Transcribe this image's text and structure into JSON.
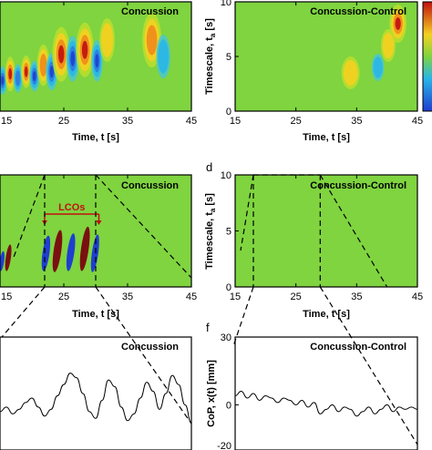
{
  "chart_data": [
    {
      "panel": "",
      "type": "heatmap",
      "title": "Concussion",
      "xlabel": "Time, t [s]",
      "ylabel": "",
      "xticks": [
        "15",
        "25",
        "35",
        "45"
      ],
      "yticks": [],
      "xlim": [
        15,
        45
      ],
      "ylim": [
        0,
        10
      ],
      "blobs": [
        {
          "t": 15.4,
          "s": 2.8,
          "w": 0.7,
          "h": 2.6,
          "v": -0.9
        },
        {
          "t": 16.6,
          "s": 3.4,
          "w": 0.8,
          "h": 3.2,
          "v": 0.85
        },
        {
          "t": 17.8,
          "s": 3.0,
          "w": 0.7,
          "h": 2.6,
          "v": -0.7
        },
        {
          "t": 19.1,
          "s": 3.6,
          "w": 0.8,
          "h": 3.0,
          "v": 0.8
        },
        {
          "t": 20.4,
          "s": 3.2,
          "w": 0.8,
          "h": 2.8,
          "v": -0.85
        },
        {
          "t": 21.8,
          "s": 4.2,
          "w": 1.0,
          "h": 3.8,
          "v": 0.7
        },
        {
          "t": 23.1,
          "s": 3.6,
          "w": 0.9,
          "h": 3.4,
          "v": -0.8
        },
        {
          "t": 24.6,
          "s": 5.2,
          "w": 1.4,
          "h": 5.0,
          "v": 1.0
        },
        {
          "t": 26.4,
          "s": 4.8,
          "w": 1.0,
          "h": 4.2,
          "v": -0.9
        },
        {
          "t": 28.3,
          "s": 5.6,
          "w": 1.4,
          "h": 5.0,
          "v": 1.0
        },
        {
          "t": 30.2,
          "s": 4.6,
          "w": 0.9,
          "h": 3.8,
          "v": -0.85
        },
        {
          "t": 31.8,
          "s": 6.5,
          "w": 1.2,
          "h": 4.0,
          "v": 0.4
        },
        {
          "t": 38.8,
          "s": 6.5,
          "w": 1.5,
          "h": 5.0,
          "v": 0.5
        },
        {
          "t": 40.6,
          "s": 5.0,
          "w": 1.1,
          "h": 4.0,
          "v": -0.4
        }
      ]
    },
    {
      "panel": "",
      "type": "heatmap",
      "title": "Concussion-Control",
      "xlabel": "Time, t [s]",
      "ylabel": "Timescale, t",
      "ylabel_sub": "a",
      "ylabel_unit": " [s]",
      "xticks": [
        "15",
        "25",
        "35",
        "45"
      ],
      "yticks": [
        "0",
        "5",
        "10"
      ],
      "xlim": [
        15,
        45
      ],
      "ylim": [
        0,
        10
      ],
      "blobs": [
        {
          "t": 41.8,
          "s": 8.0,
          "w": 1.4,
          "h": 3.5,
          "v": 0.85
        },
        {
          "t": 40.2,
          "s": 6.0,
          "w": 1.2,
          "h": 3.0,
          "v": 0.3
        },
        {
          "t": 38.5,
          "s": 4.0,
          "w": 1.0,
          "h": 2.5,
          "v": -0.25
        },
        {
          "t": 34.0,
          "s": 3.5,
          "w": 1.5,
          "h": 3.0,
          "v": 0.15
        }
      ]
    },
    {
      "panel": "",
      "type": "heatmap",
      "title": "Concussion",
      "xlabel": "Time, t [s]",
      "ylabel": "",
      "xticks": [
        "15",
        "25",
        "35",
        "45"
      ],
      "yticks": [],
      "xlim": [
        15,
        45
      ],
      "ylim": [
        0,
        10
      ],
      "annotation": "LCOs",
      "lco_span": [
        22.0,
        30.5
      ],
      "blobs": [
        {
          "t": 15.3,
          "s": 2.3,
          "w": 0.35,
          "h": 0.9,
          "v": -1
        },
        {
          "t": 16.3,
          "s": 2.6,
          "w": 0.4,
          "h": 1.2,
          "v": 1
        },
        {
          "t": 22.2,
          "s": 3.0,
          "w": 0.55,
          "h": 1.6,
          "v": -1
        },
        {
          "t": 24.0,
          "s": 3.2,
          "w": 0.6,
          "h": 1.9,
          "v": 1
        },
        {
          "t": 26.1,
          "s": 3.1,
          "w": 0.55,
          "h": 1.7,
          "v": -1
        },
        {
          "t": 28.3,
          "s": 3.4,
          "w": 0.6,
          "h": 2.0,
          "v": 1
        },
        {
          "t": 29.9,
          "s": 3.0,
          "w": 0.5,
          "h": 1.7,
          "v": -1
        }
      ]
    },
    {
      "panel": "d",
      "type": "heatmap",
      "title": "Concussion-Control",
      "xlabel": "Time, t [s]",
      "ylabel": "Timescale, t",
      "ylabel_sub": "a",
      "ylabel_unit": " [s]",
      "xticks": [
        "15",
        "25",
        "35",
        "45"
      ],
      "yticks": [
        "0",
        "5",
        "10"
      ],
      "xlim": [
        15,
        45
      ],
      "ylim": [
        0,
        10
      ],
      "blobs": []
    },
    {
      "panel": "",
      "type": "line",
      "title": "Concussion",
      "xlabel": "",
      "ylabel": "",
      "xlim": [
        15,
        45
      ],
      "ylim": [
        -20,
        30
      ],
      "x": [
        15,
        16,
        17,
        18,
        19,
        20,
        21,
        22,
        23,
        24,
        25,
        26,
        27,
        28,
        29,
        30,
        31,
        32,
        33,
        34,
        35,
        36,
        37,
        38,
        39,
        40,
        41,
        42,
        43,
        44,
        45
      ],
      "y": [
        -3,
        -1,
        -4,
        -2,
        1,
        3,
        -1,
        -5,
        -2,
        4,
        9,
        14,
        12,
        5,
        -3,
        -6,
        2,
        11,
        8,
        -1,
        -7,
        -4,
        3,
        10,
        6,
        -2,
        5,
        13,
        9,
        0,
        -8
      ]
    },
    {
      "panel": "f",
      "type": "line",
      "title": "Concussion-Control",
      "xlabel": "",
      "ylabel": "CoP, x(t) [mm]",
      "yticks": [
        "30",
        "0",
        "-20"
      ],
      "xlim": [
        15,
        45
      ],
      "ylim": [
        -20,
        30
      ],
      "x": [
        15,
        16,
        17,
        18,
        19,
        20,
        21,
        22,
        23,
        24,
        25,
        26,
        27,
        28,
        29,
        30,
        31,
        32,
        33,
        34,
        35,
        36,
        37,
        38,
        39,
        40,
        41,
        42,
        43,
        44,
        45
      ],
      "y": [
        4,
        6,
        3,
        5,
        2,
        4,
        3,
        1,
        3,
        2,
        0,
        2,
        -1,
        1,
        -4,
        -2,
        0,
        -3,
        -1,
        -2,
        -5,
        -3,
        -1,
        -4,
        -2,
        0,
        -3,
        -1,
        -2,
        -1,
        -2
      ]
    }
  ],
  "colors": {
    "green": "#7FD43F",
    "red": "#C01010",
    "deep_red": "#7A1010",
    "blue": "#1E3FD0",
    "frame": "#000000"
  }
}
